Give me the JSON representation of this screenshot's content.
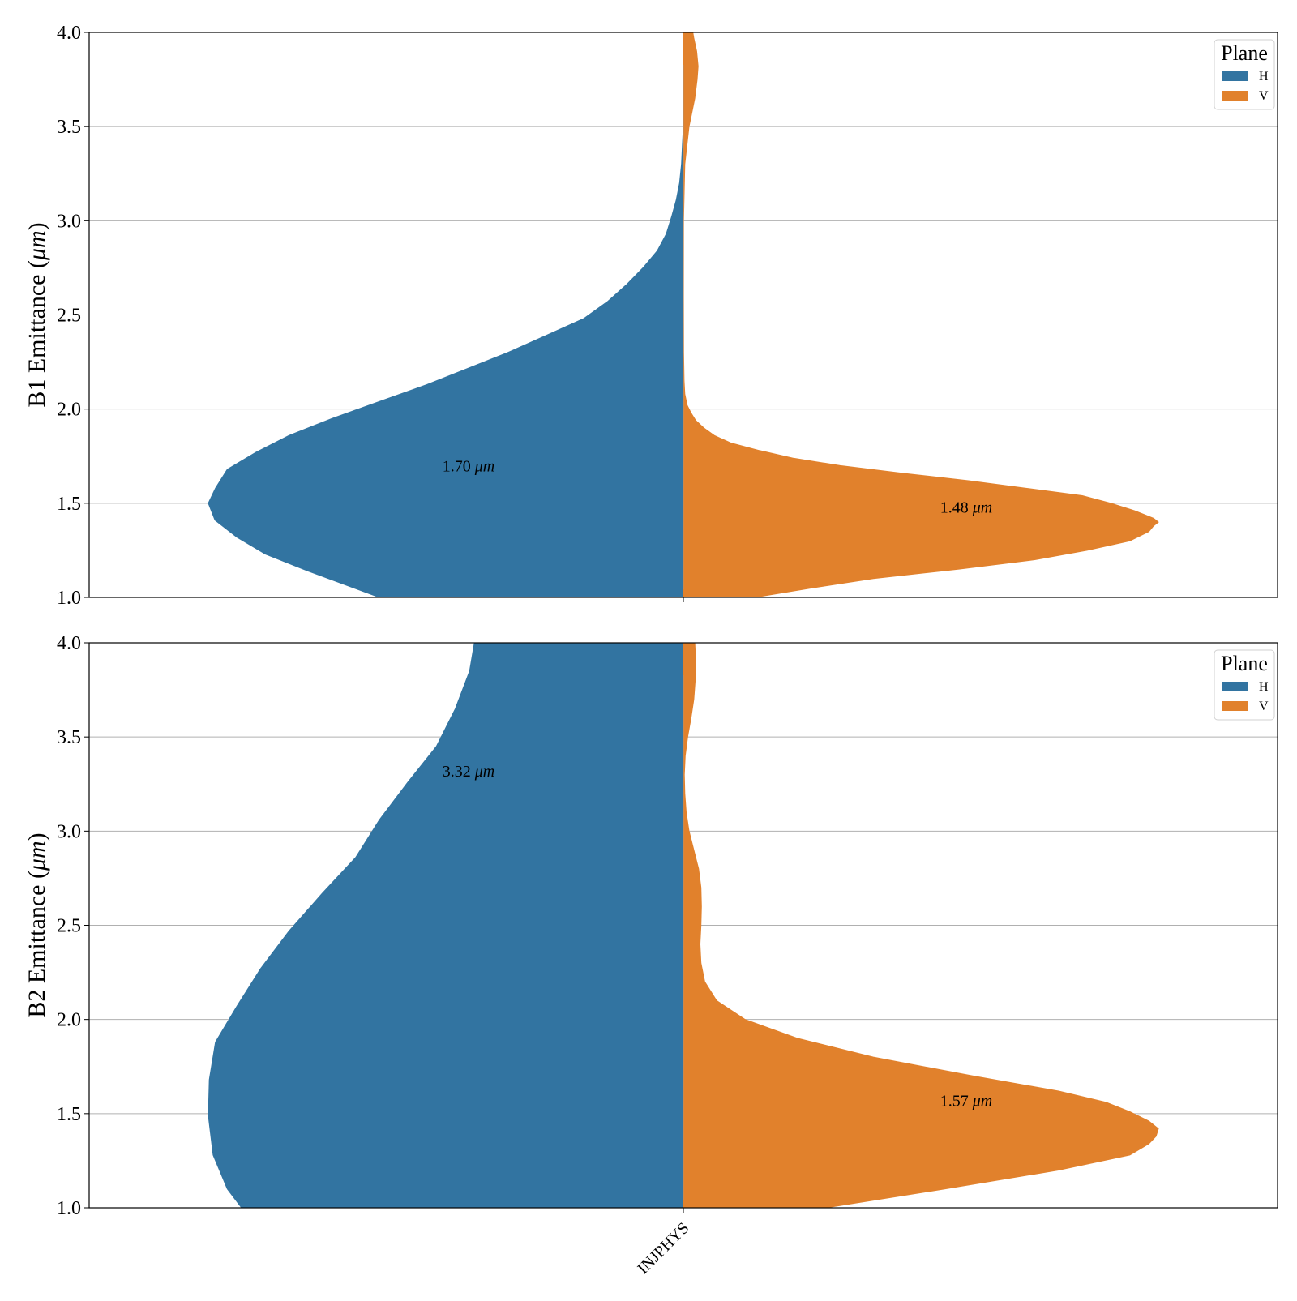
{
  "chart_data": [
    {
      "type": "violin",
      "category": "INJPHYS",
      "ylabel": "B1 Emittance (μm)",
      "ylim": [
        1.0,
        4.0
      ],
      "yticks": [
        1.0,
        1.5,
        2.0,
        2.5,
        3.0,
        3.5,
        4.0
      ],
      "ytick_labels": [
        "1.0",
        "1.5",
        "2.0",
        "2.5",
        "3.0",
        "3.5",
        "4.0"
      ],
      "grid": "horizontal",
      "legend": {
        "title": "Plane",
        "placement": "top-right",
        "entries": [
          "H",
          "V"
        ]
      },
      "series": [
        {
          "name": "H",
          "side": "left",
          "color": "#3274a1",
          "profile": [
            [
              1.0,
              0.64
            ],
            [
              1.14,
              0.79
            ],
            [
              1.23,
              0.88
            ],
            [
              1.32,
              0.94
            ],
            [
              1.41,
              0.986
            ],
            [
              1.5,
              1.0
            ],
            [
              1.58,
              0.985
            ],
            [
              1.68,
              0.96
            ],
            [
              1.77,
              0.9
            ],
            [
              1.86,
              0.83
            ],
            [
              1.95,
              0.74
            ],
            [
              2.04,
              0.64
            ],
            [
              2.13,
              0.54
            ],
            [
              2.22,
              0.45
            ],
            [
              2.3,
              0.37
            ],
            [
              2.39,
              0.29
            ],
            [
              2.48,
              0.21
            ],
            [
              2.57,
              0.16
            ],
            [
              2.66,
              0.12
            ],
            [
              2.75,
              0.085
            ],
            [
              2.84,
              0.055
            ],
            [
              2.93,
              0.036
            ],
            [
              3.02,
              0.025
            ],
            [
              3.11,
              0.015
            ],
            [
              3.2,
              0.008
            ],
            [
              3.3,
              0.004
            ],
            [
              3.4,
              0.002
            ],
            [
              3.5,
              0.0
            ]
          ],
          "annotation": "1.70 μm",
          "annotation_y": 1.7
        },
        {
          "name": "V",
          "side": "right",
          "color": "#e1812c",
          "profile": [
            [
              1.0,
              0.15
            ],
            [
              1.05,
              0.27
            ],
            [
              1.1,
              0.4
            ],
            [
              1.15,
              0.58
            ],
            [
              1.2,
              0.74
            ],
            [
              1.25,
              0.85
            ],
            [
              1.3,
              0.94
            ],
            [
              1.35,
              0.98
            ],
            [
              1.38,
              0.99
            ],
            [
              1.4,
              1.0
            ],
            [
              1.42,
              0.99
            ],
            [
              1.46,
              0.95
            ],
            [
              1.5,
              0.9
            ],
            [
              1.54,
              0.84
            ],
            [
              1.58,
              0.72
            ],
            [
              1.62,
              0.6
            ],
            [
              1.66,
              0.46
            ],
            [
              1.7,
              0.33
            ],
            [
              1.74,
              0.23
            ],
            [
              1.78,
              0.16
            ],
            [
              1.82,
              0.1
            ],
            [
              1.86,
              0.065
            ],
            [
              1.9,
              0.043
            ],
            [
              1.94,
              0.026
            ],
            [
              1.98,
              0.016
            ],
            [
              2.02,
              0.008
            ],
            [
              2.08,
              0.003
            ],
            [
              2.15,
              0.0015
            ],
            [
              2.3,
              0.0005
            ],
            [
              2.6,
              0.0002
            ],
            [
              3.0,
              0.0003
            ],
            [
              3.3,
              0.003
            ],
            [
              3.5,
              0.012
            ],
            [
              3.65,
              0.024
            ],
            [
              3.75,
              0.029
            ],
            [
              3.82,
              0.031
            ],
            [
              3.9,
              0.028
            ],
            [
              3.97,
              0.022
            ],
            [
              4.0,
              0.02
            ]
          ],
          "annotation": "1.48 μm",
          "annotation_y": 1.48
        }
      ]
    },
    {
      "type": "violin",
      "category": "INJPHYS",
      "ylabel": "B2 Emittance (μm)",
      "ylim": [
        1.0,
        4.0
      ],
      "yticks": [
        1.0,
        1.5,
        2.0,
        2.5,
        3.0,
        3.5,
        4.0
      ],
      "ytick_labels": [
        "1.0",
        "1.5",
        "2.0",
        "2.5",
        "3.0",
        "3.5",
        "4.0"
      ],
      "xtick_labels": [
        "INJPHYS"
      ],
      "grid": "horizontal",
      "legend": {
        "title": "Plane",
        "placement": "top-right",
        "entries": [
          "H",
          "V"
        ]
      },
      "series": [
        {
          "name": "H",
          "side": "left",
          "color": "#3274a1",
          "profile": [
            [
              1.0,
              0.93
            ],
            [
              1.1,
              0.96
            ],
            [
              1.28,
              0.99
            ],
            [
              1.49,
              1.0
            ],
            [
              1.68,
              0.998
            ],
            [
              1.88,
              0.985
            ],
            [
              2.07,
              0.94
            ],
            [
              2.27,
              0.89
            ],
            [
              2.47,
              0.83
            ],
            [
              2.67,
              0.76
            ],
            [
              2.86,
              0.69
            ],
            [
              3.06,
              0.64
            ],
            [
              3.26,
              0.58
            ],
            [
              3.45,
              0.52
            ],
            [
              3.65,
              0.48
            ],
            [
              3.85,
              0.45
            ],
            [
              4.0,
              0.44
            ]
          ],
          "annotation": "3.32 μm",
          "annotation_y": 3.32
        },
        {
          "name": "V",
          "side": "right",
          "color": "#e1812c",
          "profile": [
            [
              1.0,
              0.3
            ],
            [
              1.1,
              0.55
            ],
            [
              1.2,
              0.79
            ],
            [
              1.28,
              0.94
            ],
            [
              1.34,
              0.98
            ],
            [
              1.38,
              0.995
            ],
            [
              1.42,
              1.0
            ],
            [
              1.46,
              0.98
            ],
            [
              1.51,
              0.94
            ],
            [
              1.56,
              0.89
            ],
            [
              1.62,
              0.79
            ],
            [
              1.7,
              0.61
            ],
            [
              1.8,
              0.4
            ],
            [
              1.9,
              0.24
            ],
            [
              2.0,
              0.13
            ],
            [
              2.1,
              0.07
            ],
            [
              2.2,
              0.045
            ],
            [
              2.3,
              0.037
            ],
            [
              2.4,
              0.035
            ],
            [
              2.5,
              0.037
            ],
            [
              2.6,
              0.038
            ],
            [
              2.7,
              0.037
            ],
            [
              2.8,
              0.032
            ],
            [
              2.9,
              0.022
            ],
            [
              3.0,
              0.012
            ],
            [
              3.1,
              0.006
            ],
            [
              3.2,
              0.003
            ],
            [
              3.3,
              0.002
            ],
            [
              3.4,
              0.004
            ],
            [
              3.5,
              0.009
            ],
            [
              3.6,
              0.016
            ],
            [
              3.7,
              0.022
            ],
            [
              3.8,
              0.025
            ],
            [
              3.9,
              0.026
            ],
            [
              4.0,
              0.024
            ]
          ],
          "annotation": "1.57 μm",
          "annotation_y": 1.57
        }
      ]
    }
  ]
}
